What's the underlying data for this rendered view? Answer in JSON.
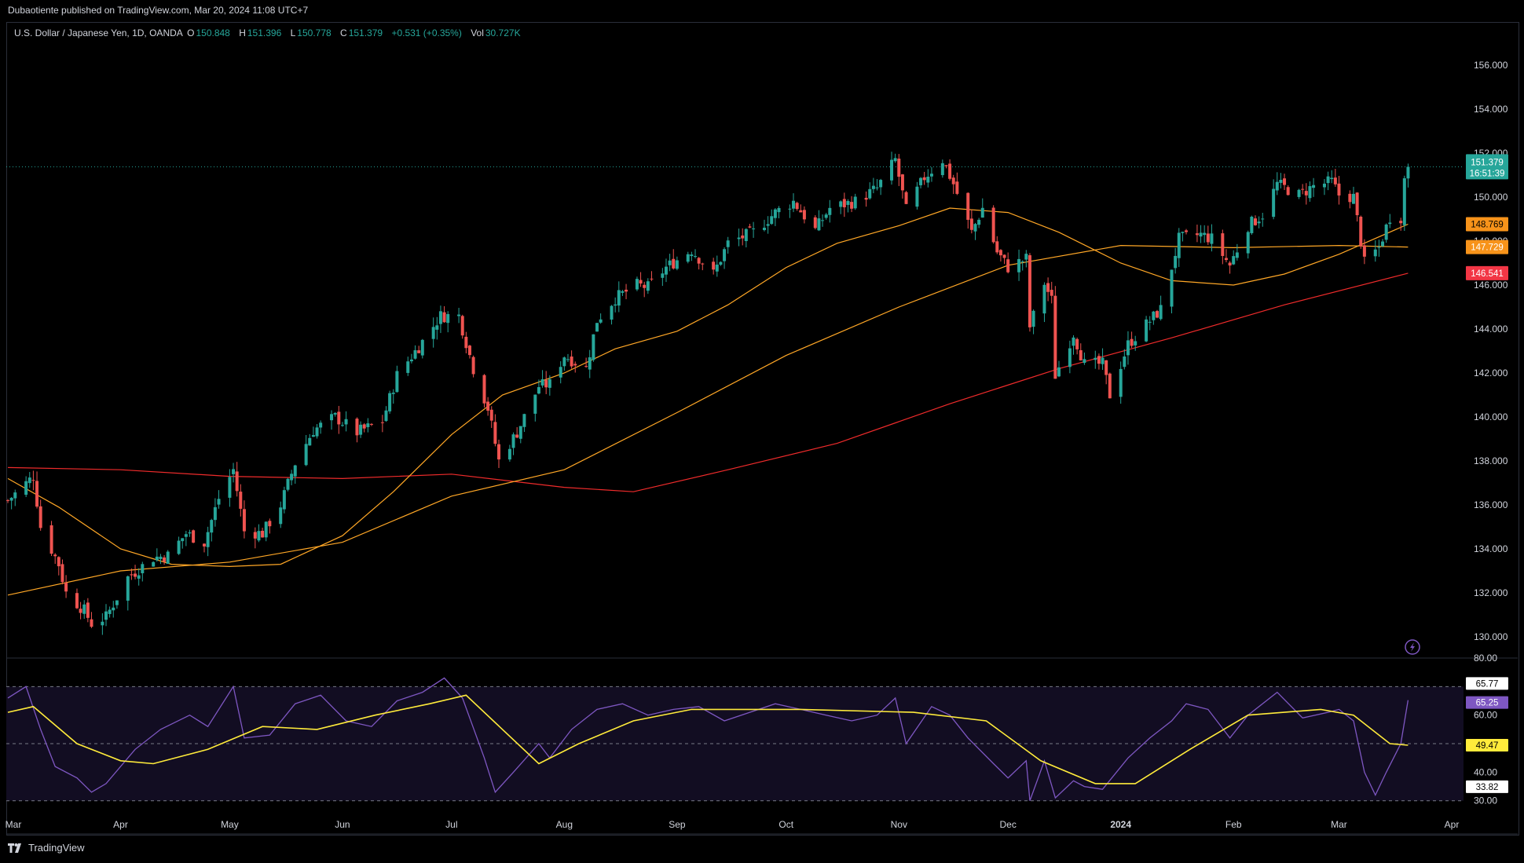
{
  "publisher_line": "Dubaotiente published on TradingView.com, Mar 20, 2024 11:08 UTC+7",
  "footer_brand": "TradingView",
  "legend": {
    "symbol": "U.S. Dollar / Japanese Yen, 1D, OANDA",
    "o_label": "O",
    "o_value": "150.848",
    "h_label": "H",
    "h_value": "151.396",
    "l_label": "L",
    "l_value": "150.778",
    "c_label": "C",
    "c_value": "151.379",
    "change": "+0.531 (+0.35%)",
    "vol_label": "Vol",
    "vol_value": "30.727K"
  },
  "colors": {
    "up": "#26a69a",
    "down": "#ef5350",
    "ma_fast": "#ffa726",
    "ma_slow": "#ef2b2b",
    "rsi": "#7e57c2",
    "rsi_ma": "#ffeb3b"
  },
  "chart_data": [
    {
      "type": "candlestick",
      "title": "U.S. Dollar / Japanese Yen, 1D, OANDA",
      "x_months": [
        "Mar",
        "Apr",
        "May",
        "Jun",
        "Jul",
        "Aug",
        "Sep",
        "Oct",
        "Nov",
        "Dec",
        "2024",
        "Feb",
        "Mar",
        "Apr"
      ],
      "y_ticks": [
        "156.000",
        "154.000",
        "152.000",
        "150.000",
        "148.000",
        "146.000",
        "144.000",
        "142.000",
        "140.000",
        "138.000",
        "136.000",
        "134.000",
        "132.000",
        "130.000"
      ],
      "ylim": [
        129.5,
        157.0
      ],
      "close_path": [
        [
          "2023-03-01",
          136.2
        ],
        [
          "2023-03-08",
          137.3
        ],
        [
          "2023-03-10",
          135.0
        ],
        [
          "2023-03-15",
          133.3
        ],
        [
          "2023-03-17",
          132.0
        ],
        [
          "2023-03-22",
          131.2
        ],
        [
          "2023-03-24",
          130.6
        ],
        [
          "2023-03-28",
          130.9
        ],
        [
          "2023-04-03",
          132.7
        ],
        [
          "2023-04-10",
          133.6
        ],
        [
          "2023-04-14",
          133.7
        ],
        [
          "2023-04-19",
          134.7
        ],
        [
          "2023-04-24",
          134.3
        ],
        [
          "2023-04-28",
          136.3
        ],
        [
          "2023-05-02",
          137.6
        ],
        [
          "2023-05-05",
          134.8
        ],
        [
          "2023-05-10",
          134.7
        ],
        [
          "2023-05-15",
          136.0
        ],
        [
          "2023-05-19",
          137.9
        ],
        [
          "2023-05-24",
          139.4
        ],
        [
          "2023-05-30",
          140.0
        ],
        [
          "2023-06-05",
          139.3
        ],
        [
          "2023-06-12",
          139.8
        ],
        [
          "2023-06-16",
          141.9
        ],
        [
          "2023-06-22",
          143.2
        ],
        [
          "2023-06-28",
          144.6
        ],
        [
          "2023-07-03",
          144.6
        ],
        [
          "2023-07-07",
          142.2
        ],
        [
          "2023-07-11",
          140.4
        ],
        [
          "2023-07-14",
          138.0
        ],
        [
          "2023-07-19",
          139.3
        ],
        [
          "2023-07-25",
          141.4
        ],
        [
          "2023-07-28",
          141.5
        ],
        [
          "2023-08-01",
          142.8
        ],
        [
          "2023-08-07",
          142.2
        ],
        [
          "2023-08-10",
          144.4
        ],
        [
          "2023-08-15",
          145.4
        ],
        [
          "2023-08-21",
          146.0
        ],
        [
          "2023-08-24",
          145.9
        ],
        [
          "2023-08-29",
          146.8
        ],
        [
          "2023-09-05",
          147.6
        ],
        [
          "2023-09-11",
          146.5
        ],
        [
          "2023-09-15",
          147.9
        ],
        [
          "2023-09-22",
          148.4
        ],
        [
          "2023-09-28",
          149.3
        ],
        [
          "2023-10-03",
          149.8
        ],
        [
          "2023-10-09",
          148.5
        ],
        [
          "2023-10-13",
          149.5
        ],
        [
          "2023-10-20",
          149.8
        ],
        [
          "2023-10-26",
          150.4
        ],
        [
          "2023-10-31",
          151.7
        ],
        [
          "2023-11-03",
          149.4
        ],
        [
          "2023-11-08",
          150.9
        ],
        [
          "2023-11-13",
          151.7
        ],
        [
          "2023-11-16",
          150.6
        ],
        [
          "2023-11-21",
          148.4
        ],
        [
          "2023-11-24",
          149.5
        ],
        [
          "2023-11-28",
          147.5
        ],
        [
          "2023-12-01",
          146.8
        ],
        [
          "2023-12-06",
          147.2
        ],
        [
          "2023-12-07",
          144.1
        ],
        [
          "2023-12-11",
          146.1
        ],
        [
          "2023-12-13",
          145.3
        ],
        [
          "2023-12-14",
          141.9
        ],
        [
          "2023-12-19",
          143.8
        ],
        [
          "2023-12-22",
          142.4
        ],
        [
          "2023-12-27",
          142.4
        ],
        [
          "2023-12-29",
          141.0
        ],
        [
          "2024-01-03",
          143.3
        ],
        [
          "2024-01-08",
          144.2
        ],
        [
          "2024-01-12",
          144.9
        ],
        [
          "2024-01-17",
          148.1
        ],
        [
          "2024-01-23",
          148.3
        ],
        [
          "2024-01-26",
          148.1
        ],
        [
          "2024-01-31",
          146.9
        ],
        [
          "2024-02-05",
          148.7
        ],
        [
          "2024-02-09",
          149.2
        ],
        [
          "2024-02-13",
          150.6
        ],
        [
          "2024-02-19",
          150.1
        ],
        [
          "2024-02-23",
          150.5
        ],
        [
          "2024-02-28",
          150.7
        ],
        [
          "2024-03-01",
          150.1
        ],
        [
          "2024-03-05",
          150.0
        ],
        [
          "2024-03-08",
          147.0
        ],
        [
          "2024-03-12",
          147.7
        ],
        [
          "2024-03-15",
          149.1
        ],
        [
          "2024-03-18",
          149.1
        ],
        [
          "2024-03-19",
          150.8
        ],
        [
          "2024-03-20",
          151.379
        ]
      ],
      "ma_fast_path": [
        [
          "2023-03-01",
          137.2
        ],
        [
          "2023-03-15",
          135.9
        ],
        [
          "2023-04-01",
          134.0
        ],
        [
          "2023-04-15",
          133.3
        ],
        [
          "2023-05-01",
          133.2
        ],
        [
          "2023-05-15",
          133.3
        ],
        [
          "2023-06-01",
          134.6
        ],
        [
          "2023-06-15",
          136.6
        ],
        [
          "2023-07-01",
          139.2
        ],
        [
          "2023-07-15",
          141.0
        ],
        [
          "2023-08-01",
          142.0
        ],
        [
          "2023-08-15",
          143.1
        ],
        [
          "2023-09-01",
          143.9
        ],
        [
          "2023-09-15",
          145.1
        ],
        [
          "2023-10-01",
          146.8
        ],
        [
          "2023-10-15",
          147.9
        ],
        [
          "2023-11-01",
          148.7
        ],
        [
          "2023-11-15",
          149.5
        ],
        [
          "2023-12-01",
          149.3
        ],
        [
          "2023-12-15",
          148.4
        ],
        [
          "2024-01-01",
          147.0
        ],
        [
          "2024-01-15",
          146.2
        ],
        [
          "2024-02-01",
          146.0
        ],
        [
          "2024-02-15",
          146.5
        ],
        [
          "2024-03-01",
          147.4
        ],
        [
          "2024-03-20",
          148.769
        ]
      ],
      "ma_mid_path": [
        [
          "2023-03-01",
          131.9
        ],
        [
          "2023-04-01",
          133.0
        ],
        [
          "2023-05-01",
          133.4
        ],
        [
          "2023-06-01",
          134.3
        ],
        [
          "2023-07-01",
          136.4
        ],
        [
          "2023-08-01",
          137.6
        ],
        [
          "2023-09-01",
          140.2
        ],
        [
          "2023-10-01",
          142.8
        ],
        [
          "2023-11-01",
          145.0
        ],
        [
          "2023-12-01",
          146.9
        ],
        [
          "2024-01-01",
          147.8
        ],
        [
          "2024-02-01",
          147.7
        ],
        [
          "2024-03-01",
          147.8
        ],
        [
          "2024-03-20",
          147.729
        ]
      ],
      "ma_slow_path": [
        [
          "2023-03-01",
          137.7
        ],
        [
          "2023-04-01",
          137.6
        ],
        [
          "2023-05-01",
          137.3
        ],
        [
          "2023-06-01",
          137.2
        ],
        [
          "2023-07-01",
          137.4
        ],
        [
          "2023-08-01",
          136.8
        ],
        [
          "2023-08-20",
          136.6
        ],
        [
          "2023-09-15",
          137.6
        ],
        [
          "2023-10-15",
          138.8
        ],
        [
          "2023-11-15",
          140.6
        ],
        [
          "2023-12-15",
          142.2
        ],
        [
          "2024-01-15",
          143.6
        ],
        [
          "2024-02-15",
          145.1
        ],
        [
          "2024-03-20",
          146.541
        ]
      ],
      "price_labels": {
        "last": "151.379",
        "countdown": "16:51:39",
        "ma_fast": "148.769",
        "ma_mid": "147.729",
        "ma_slow": "146.541"
      }
    },
    {
      "type": "line",
      "title": "RSI",
      "y_ticks": [
        "80.00",
        "60.00",
        "40.00",
        "30.00"
      ],
      "ylim": [
        28,
        80
      ],
      "bands": [
        70,
        50,
        30
      ],
      "rsi_path": [
        [
          "2023-03-01",
          66
        ],
        [
          "2023-03-06",
          70
        ],
        [
          "2023-03-10",
          55
        ],
        [
          "2023-03-14",
          42
        ],
        [
          "2023-03-20",
          38
        ],
        [
          "2023-03-24",
          33
        ],
        [
          "2023-03-28",
          36
        ],
        [
          "2023-04-05",
          48
        ],
        [
          "2023-04-12",
          55
        ],
        [
          "2023-04-20",
          60
        ],
        [
          "2023-04-25",
          56
        ],
        [
          "2023-05-02",
          70
        ],
        [
          "2023-05-05",
          52
        ],
        [
          "2023-05-12",
          53
        ],
        [
          "2023-05-19",
          64
        ],
        [
          "2023-05-26",
          67
        ],
        [
          "2023-06-02",
          58
        ],
        [
          "2023-06-09",
          56
        ],
        [
          "2023-06-16",
          65
        ],
        [
          "2023-06-23",
          68
        ],
        [
          "2023-06-29",
          73
        ],
        [
          "2023-07-04",
          66
        ],
        [
          "2023-07-10",
          45
        ],
        [
          "2023-07-13",
          33
        ],
        [
          "2023-07-18",
          40
        ],
        [
          "2023-07-25",
          50
        ],
        [
          "2023-07-28",
          45
        ],
        [
          "2023-08-03",
          55
        ],
        [
          "2023-08-10",
          62
        ],
        [
          "2023-08-17",
          64
        ],
        [
          "2023-08-24",
          60
        ],
        [
          "2023-08-31",
          62
        ],
        [
          "2023-09-07",
          63
        ],
        [
          "2023-09-14",
          58
        ],
        [
          "2023-09-21",
          61
        ],
        [
          "2023-09-28",
          64
        ],
        [
          "2023-10-05",
          62
        ],
        [
          "2023-10-12",
          60
        ],
        [
          "2023-10-19",
          58
        ],
        [
          "2023-10-26",
          60
        ],
        [
          "2023-10-31",
          66
        ],
        [
          "2023-11-03",
          50
        ],
        [
          "2023-11-10",
          63
        ],
        [
          "2023-11-15",
          60
        ],
        [
          "2023-11-20",
          52
        ],
        [
          "2023-11-27",
          43
        ],
        [
          "2023-12-01",
          38
        ],
        [
          "2023-12-06",
          44
        ],
        [
          "2023-12-07",
          30
        ],
        [
          "2023-12-11",
          44
        ],
        [
          "2023-12-14",
          31
        ],
        [
          "2023-12-19",
          37
        ],
        [
          "2023-12-22",
          35
        ],
        [
          "2023-12-27",
          34
        ],
        [
          "2024-01-03",
          45
        ],
        [
          "2024-01-09",
          52
        ],
        [
          "2024-01-15",
          58
        ],
        [
          "2024-01-19",
          64
        ],
        [
          "2024-01-25",
          62
        ],
        [
          "2024-01-31",
          52
        ],
        [
          "2024-02-05",
          60
        ],
        [
          "2024-02-13",
          68
        ],
        [
          "2024-02-20",
          59
        ],
        [
          "2024-02-27",
          61
        ],
        [
          "2024-03-01",
          62
        ],
        [
          "2024-03-05",
          58
        ],
        [
          "2024-03-08",
          40
        ],
        [
          "2024-03-11",
          32
        ],
        [
          "2024-03-14",
          40
        ],
        [
          "2024-03-18",
          50
        ],
        [
          "2024-03-20",
          65.25
        ]
      ],
      "rsi_ma_path": [
        [
          "2023-03-01",
          61
        ],
        [
          "2023-03-08",
          63
        ],
        [
          "2023-03-20",
          50
        ],
        [
          "2023-04-01",
          44
        ],
        [
          "2023-04-10",
          43
        ],
        [
          "2023-04-25",
          48
        ],
        [
          "2023-05-10",
          56
        ],
        [
          "2023-05-25",
          55
        ],
        [
          "2023-06-10",
          60
        ],
        [
          "2023-06-25",
          64
        ],
        [
          "2023-07-05",
          67
        ],
        [
          "2023-07-15",
          55
        ],
        [
          "2023-07-25",
          43
        ],
        [
          "2023-08-05",
          50
        ],
        [
          "2023-08-20",
          58
        ],
        [
          "2023-09-05",
          62
        ],
        [
          "2023-10-05",
          62
        ],
        [
          "2023-11-05",
          61
        ],
        [
          "2023-11-25",
          58
        ],
        [
          "2023-12-10",
          44
        ],
        [
          "2023-12-25",
          36
        ],
        [
          "2024-01-05",
          36
        ],
        [
          "2024-01-20",
          48
        ],
        [
          "2024-02-05",
          60
        ],
        [
          "2024-02-25",
          62
        ],
        [
          "2024-03-05",
          60
        ],
        [
          "2024-03-15",
          50
        ],
        [
          "2024-03-20",
          49.47
        ]
      ],
      "labels": {
        "upper": "65.77",
        "rsi": "65.25",
        "mid": "49.47",
        "lower": "33.82"
      }
    }
  ]
}
